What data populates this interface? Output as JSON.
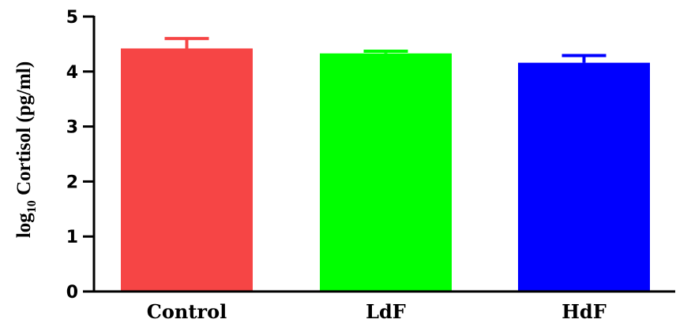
{
  "chart_data": {
    "type": "bar",
    "categories": [
      "Control",
      "LdF",
      "HdF"
    ],
    "values": [
      4.42,
      4.33,
      4.16
    ],
    "error_upper": [
      4.6,
      4.37,
      4.29
    ],
    "colors": [
      "#f64545",
      "#00ff00",
      "#0000ff"
    ],
    "ylim": [
      0,
      5
    ],
    "yticks": [
      0,
      1,
      2,
      3,
      4,
      5
    ],
    "ylabel_prefix": "log",
    "ylabel_subscript": "10",
    "ylabel_main": " Cortisol (pg/ml)",
    "xlabel": "",
    "title": "",
    "grid": false,
    "legend": "none"
  }
}
